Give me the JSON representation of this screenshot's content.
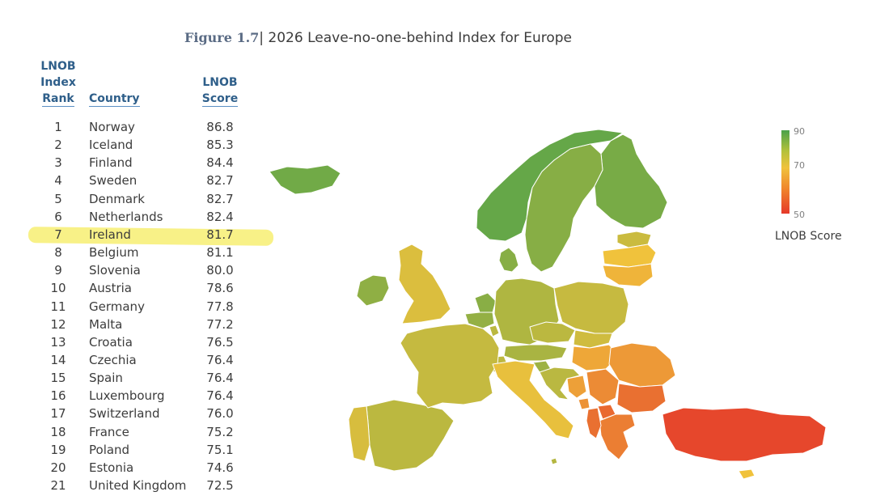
{
  "figure": {
    "number": "Figure 1.7",
    "separator": "|",
    "title": "2026 Leave-no-one-behind Index for Europe"
  },
  "table": {
    "headers": {
      "rank": [
        "LNOB",
        "Index",
        "Rank"
      ],
      "country": "Country",
      "score": [
        "LNOB",
        "Score"
      ]
    },
    "rows": [
      {
        "rank": "1",
        "country": "Norway",
        "score": "86.8"
      },
      {
        "rank": "2",
        "country": "Iceland",
        "score": "85.3"
      },
      {
        "rank": "3",
        "country": "Finland",
        "score": "84.4"
      },
      {
        "rank": "4",
        "country": "Sweden",
        "score": "82.7"
      },
      {
        "rank": "5",
        "country": "Denmark",
        "score": "82.7"
      },
      {
        "rank": "6",
        "country": "Netherlands",
        "score": "82.4"
      },
      {
        "rank": "7",
        "country": "Ireland",
        "score": "81.7"
      },
      {
        "rank": "8",
        "country": "Belgium",
        "score": "81.1"
      },
      {
        "rank": "9",
        "country": "Slovenia",
        "score": "80.0"
      },
      {
        "rank": "10",
        "country": "Austria",
        "score": "78.6"
      },
      {
        "rank": "11",
        "country": "Germany",
        "score": "77.8"
      },
      {
        "rank": "12",
        "country": "Malta",
        "score": "77.2"
      },
      {
        "rank": "13",
        "country": "Croatia",
        "score": "76.5"
      },
      {
        "rank": "14",
        "country": "Czechia",
        "score": "76.4"
      },
      {
        "rank": "15",
        "country": "Spain",
        "score": "76.4"
      },
      {
        "rank": "16",
        "country": "Luxembourg",
        "score": "76.4"
      },
      {
        "rank": "17",
        "country": "Switzerland",
        "score": "76.0"
      },
      {
        "rank": "18",
        "country": "France",
        "score": "75.2"
      },
      {
        "rank": "19",
        "country": "Poland",
        "score": "75.1"
      },
      {
        "rank": "20",
        "country": "Estonia",
        "score": "74.6"
      },
      {
        "rank": "21",
        "country": "United Kingdom",
        "score": "72.5"
      }
    ]
  },
  "chart_data": {
    "type": "choropleth-map",
    "title": "2026 Leave-no-one-behind Index for Europe",
    "legend": {
      "title": "LNOB Score",
      "min": 50,
      "max": 90,
      "ticks": [
        "90",
        "70",
        "50"
      ],
      "colors": {
        "high": "#4aa24a",
        "mid": "#f0c23c",
        "low": "#e5392a"
      }
    },
    "regions": [
      {
        "name": "Norway",
        "score": 86.8
      },
      {
        "name": "Iceland",
        "score": 85.3
      },
      {
        "name": "Finland",
        "score": 84.4
      },
      {
        "name": "Sweden",
        "score": 82.7
      },
      {
        "name": "Denmark",
        "score": 82.7
      },
      {
        "name": "Netherlands",
        "score": 82.4
      },
      {
        "name": "Ireland",
        "score": 81.7
      },
      {
        "name": "Belgium",
        "score": 81.1
      },
      {
        "name": "Slovenia",
        "score": 80.0
      },
      {
        "name": "Austria",
        "score": 78.6
      },
      {
        "name": "Germany",
        "score": 77.8
      },
      {
        "name": "Malta",
        "score": 77.2
      },
      {
        "name": "Croatia",
        "score": 76.5
      },
      {
        "name": "Czechia",
        "score": 76.4
      },
      {
        "name": "Spain",
        "score": 76.4
      },
      {
        "name": "Luxembourg",
        "score": 76.4
      },
      {
        "name": "Switzerland",
        "score": 76.0
      },
      {
        "name": "France",
        "score": 75.2
      },
      {
        "name": "Poland",
        "score": 75.1
      },
      {
        "name": "Estonia",
        "score": 74.6
      },
      {
        "name": "United Kingdom",
        "score": 72.5
      },
      {
        "name": "Portugal",
        "score": 73
      },
      {
        "name": "Italy",
        "score": 71
      },
      {
        "name": "Slovakia",
        "score": 74
      },
      {
        "name": "Hungary",
        "score": 66
      },
      {
        "name": "Latvia",
        "score": 70
      },
      {
        "name": "Lithuania",
        "score": 68
      },
      {
        "name": "Romania",
        "score": 64
      },
      {
        "name": "Bulgaria",
        "score": 58
      },
      {
        "name": "Greece",
        "score": 60
      },
      {
        "name": "Serbia",
        "score": 62
      },
      {
        "name": "Bosnia and Herzegovina",
        "score": 65
      },
      {
        "name": "Montenegro",
        "score": 63
      },
      {
        "name": "Albania",
        "score": 58
      },
      {
        "name": "North Macedonia",
        "score": 57
      },
      {
        "name": "Cyprus",
        "score": 70
      },
      {
        "name": "Turkey",
        "score": 52
      }
    ]
  }
}
